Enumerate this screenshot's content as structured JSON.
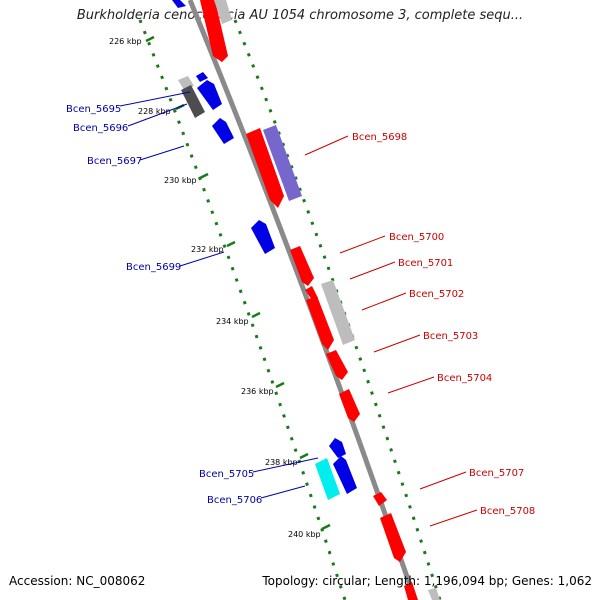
{
  "title": "Burkholderia cenocepacia AU 1054 chromosome 3, complete sequ...",
  "footer": {
    "accession": "Accession: NC_008062",
    "summary": "Topology: circular; Length: 1,196,094 bp; Genes: 1,062"
  },
  "colors": {
    "backbone": "#8a8a8a",
    "reverse_label": "#0000aa",
    "forward_label": "#cc0000",
    "ruler": "#1a7a1a",
    "red": "#ff0000",
    "blue": "#0000e6",
    "purple": "#7766cc",
    "gray": "#bdbdbd",
    "darkgray": "#4d4d4d",
    "cyan": "#00eeee"
  },
  "ticks": [
    "226 kbp",
    "228 kbp",
    "230 kbp",
    "232 kbp",
    "234 kbp",
    "236 kbp",
    "238 kbp",
    "240 kbp"
  ],
  "genes_reverse": [
    {
      "label": "Bcen_5695"
    },
    {
      "label": "Bcen_5696"
    },
    {
      "label": "Bcen_5697"
    },
    {
      "label": "Bcen_5699"
    },
    {
      "label": "Bcen_5705"
    },
    {
      "label": "Bcen_5706"
    }
  ],
  "genes_forward": [
    {
      "label": "Bcen_5698"
    },
    {
      "label": "Bcen_5700"
    },
    {
      "label": "Bcen_5701"
    },
    {
      "label": "Bcen_5702"
    },
    {
      "label": "Bcen_5703"
    },
    {
      "label": "Bcen_5704"
    },
    {
      "label": "Bcen_5707"
    },
    {
      "label": "Bcen_5708"
    }
  ]
}
